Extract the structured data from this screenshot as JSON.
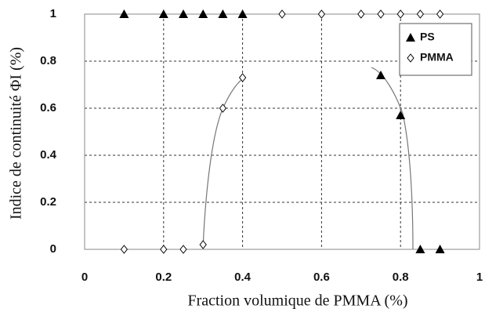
{
  "chart_data": {
    "type": "scatter",
    "x_label": "Fraction volumique de PMMA (%)",
    "y_label": "Indice de continuité ΦI (%)",
    "xlim": [
      0,
      1
    ],
    "xticks": [
      0,
      0.2,
      0.4,
      0.6,
      0.8,
      1
    ],
    "ylim": [
      0,
      1
    ],
    "yticks": [
      0,
      0.2,
      0.4,
      0.6,
      0.8,
      1
    ],
    "grid": true,
    "legend": "upper right",
    "series": [
      {
        "name": "PS",
        "color": "#000000",
        "marker": "triangle",
        "x": [
          0.1,
          0.2,
          0.25,
          0.3,
          0.35,
          0.4,
          0.75,
          0.8,
          0.85,
          0.9
        ],
        "values": [
          1,
          1,
          1,
          1,
          1,
          1,
          0.74,
          0.57,
          0,
          0
        ]
      },
      {
        "name": "PMMA",
        "color": "#000000",
        "marker": "diamond",
        "x": [
          0.1,
          0.2,
          0.25,
          0.3,
          0.35,
          0.4,
          0.5,
          0.6,
          0.7,
          0.75,
          0.8,
          0.85,
          0.9
        ],
        "values": [
          0,
          0,
          0,
          0.02,
          0.6,
          0.73,
          1,
          1,
          1,
          1,
          1,
          1,
          1
        ]
      }
    ]
  }
}
